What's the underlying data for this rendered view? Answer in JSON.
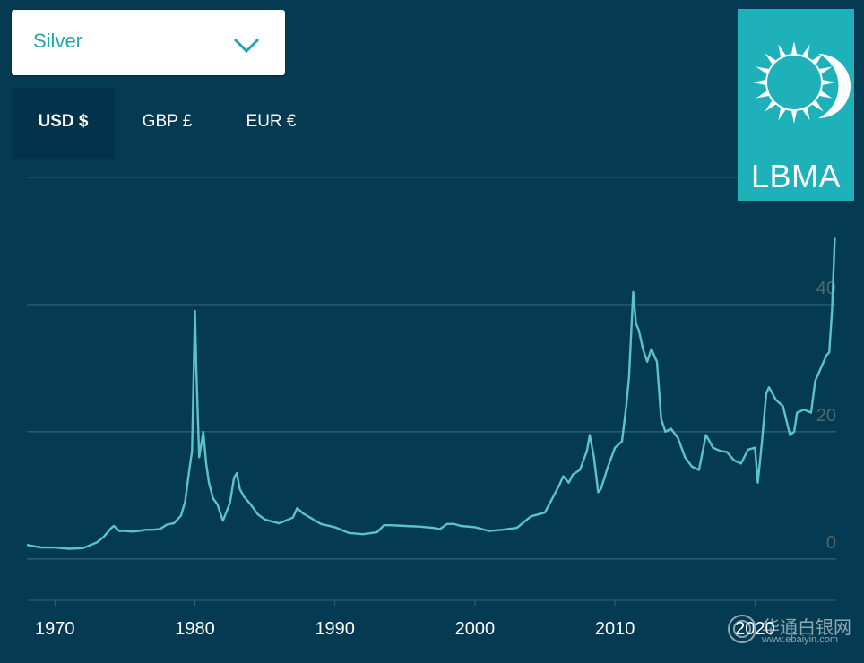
{
  "selector": {
    "value": "Silver",
    "icon": "chevron-down-icon"
  },
  "currency_tabs": [
    {
      "label": "USD $",
      "active": true
    },
    {
      "label": "GBP £",
      "active": false
    },
    {
      "label": "EUR €",
      "active": false
    }
  ],
  "logo": {
    "text": "LBMA",
    "icon": "sun-moon-logo"
  },
  "watermark": {
    "text": "华通白银网",
    "url": "www.ebaiyin.com"
  },
  "colors": {
    "background": "#043a52",
    "line": "#5bc4c9",
    "gridline": "#2e6478",
    "accent": "#1fb1b9",
    "text": "#ffffff"
  },
  "chart_data": {
    "type": "line",
    "title": "",
    "xlabel": "",
    "ylabel": "",
    "ylim": [
      -6.5,
      60
    ],
    "xlim": [
      1968,
      2025.8
    ],
    "yticks": [
      0,
      20,
      40
    ],
    "xticks": [
      1970,
      1980,
      1990,
      2000,
      2010,
      2020
    ],
    "grid": true,
    "series": [
      {
        "x": [
          1968.0,
          1969.0,
          1970.0,
          1971.0,
          1972.0,
          1973.0,
          1973.5,
          1974.0,
          1974.2,
          1974.6,
          1975.0,
          1975.5,
          1976.0,
          1976.5,
          1977.0,
          1977.5,
          1978.0,
          1978.5,
          1979.0,
          1979.3,
          1979.6,
          1979.8,
          1980.0,
          1980.1,
          1980.3,
          1980.6,
          1980.8,
          1981.0,
          1981.3,
          1981.6,
          1982.0,
          1982.5,
          1982.8,
          1983.0,
          1983.2,
          1983.5,
          1984.0,
          1984.5,
          1985.0,
          1986.0,
          1987.0,
          1987.3,
          1987.7,
          1988.0,
          1989.0,
          1990.0,
          1991.0,
          1992.0,
          1993.0,
          1993.5,
          1994.0,
          1995.0,
          1996.0,
          1997.0,
          1997.5,
          1998.0,
          1998.5,
          1999.0,
          2000.0,
          2001.0,
          2002.0,
          2003.0,
          2004.0,
          2004.5,
          2005.0,
          2006.0,
          2006.3,
          2006.7,
          2007.0,
          2007.5,
          2008.0,
          2008.2,
          2008.5,
          2008.8,
          2009.0,
          2009.5,
          2010.0,
          2010.5,
          2010.8,
          2011.0,
          2011.3,
          2011.5,
          2011.7,
          2012.0,
          2012.3,
          2012.6,
          2013.0,
          2013.3,
          2013.6,
          2014.0,
          2014.5,
          2015.0,
          2015.5,
          2016.0,
          2016.5,
          2017.0,
          2017.5,
          2018.0,
          2018.5,
          2019.0,
          2019.5,
          2020.0,
          2020.2,
          2020.5,
          2020.8,
          2021.0,
          2021.5,
          2022.0,
          2022.5,
          2022.8,
          2023.0,
          2023.5,
          2024.0,
          2024.3,
          2024.6,
          2024.9,
          2025.1,
          2025.3,
          2025.5,
          2025.6,
          2025.7
        ],
        "values": [
          2.2,
          1.8,
          1.8,
          1.6,
          1.7,
          2.6,
          3.5,
          4.8,
          5.2,
          4.4,
          4.4,
          4.3,
          4.4,
          4.6,
          4.6,
          4.7,
          5.4,
          5.6,
          6.8,
          9.0,
          14.0,
          17.0,
          39.0,
          30.0,
          16.0,
          20.0,
          15.0,
          12.0,
          9.5,
          8.6,
          6.0,
          8.8,
          12.8,
          13.5,
          11.0,
          9.8,
          8.5,
          7.0,
          6.2,
          5.6,
          6.5,
          8.0,
          7.2,
          6.8,
          5.5,
          5.0,
          4.1,
          3.9,
          4.2,
          5.3,
          5.3,
          5.2,
          5.1,
          4.9,
          4.7,
          5.5,
          5.5,
          5.2,
          5.0,
          4.4,
          4.6,
          4.9,
          6.7,
          7.0,
          7.3,
          11.5,
          13.0,
          12.0,
          13.3,
          14.0,
          17.0,
          19.5,
          16.0,
          10.5,
          11.0,
          14.5,
          17.5,
          18.5,
          24.0,
          28.5,
          42.0,
          37.0,
          36.0,
          33.0,
          31.0,
          33.0,
          31.0,
          22.0,
          20.0,
          20.5,
          19.0,
          16.0,
          14.5,
          14.0,
          19.5,
          17.5,
          17.0,
          16.8,
          15.5,
          15.0,
          17.2,
          17.5,
          12.0,
          18.5,
          26.0,
          27.0,
          25.0,
          24.0,
          19.5,
          20.0,
          23.0,
          23.5,
          23.0,
          28.0,
          29.5,
          31.0,
          32.0,
          32.5,
          39.0,
          45.0,
          50.5
        ]
      }
    ]
  }
}
